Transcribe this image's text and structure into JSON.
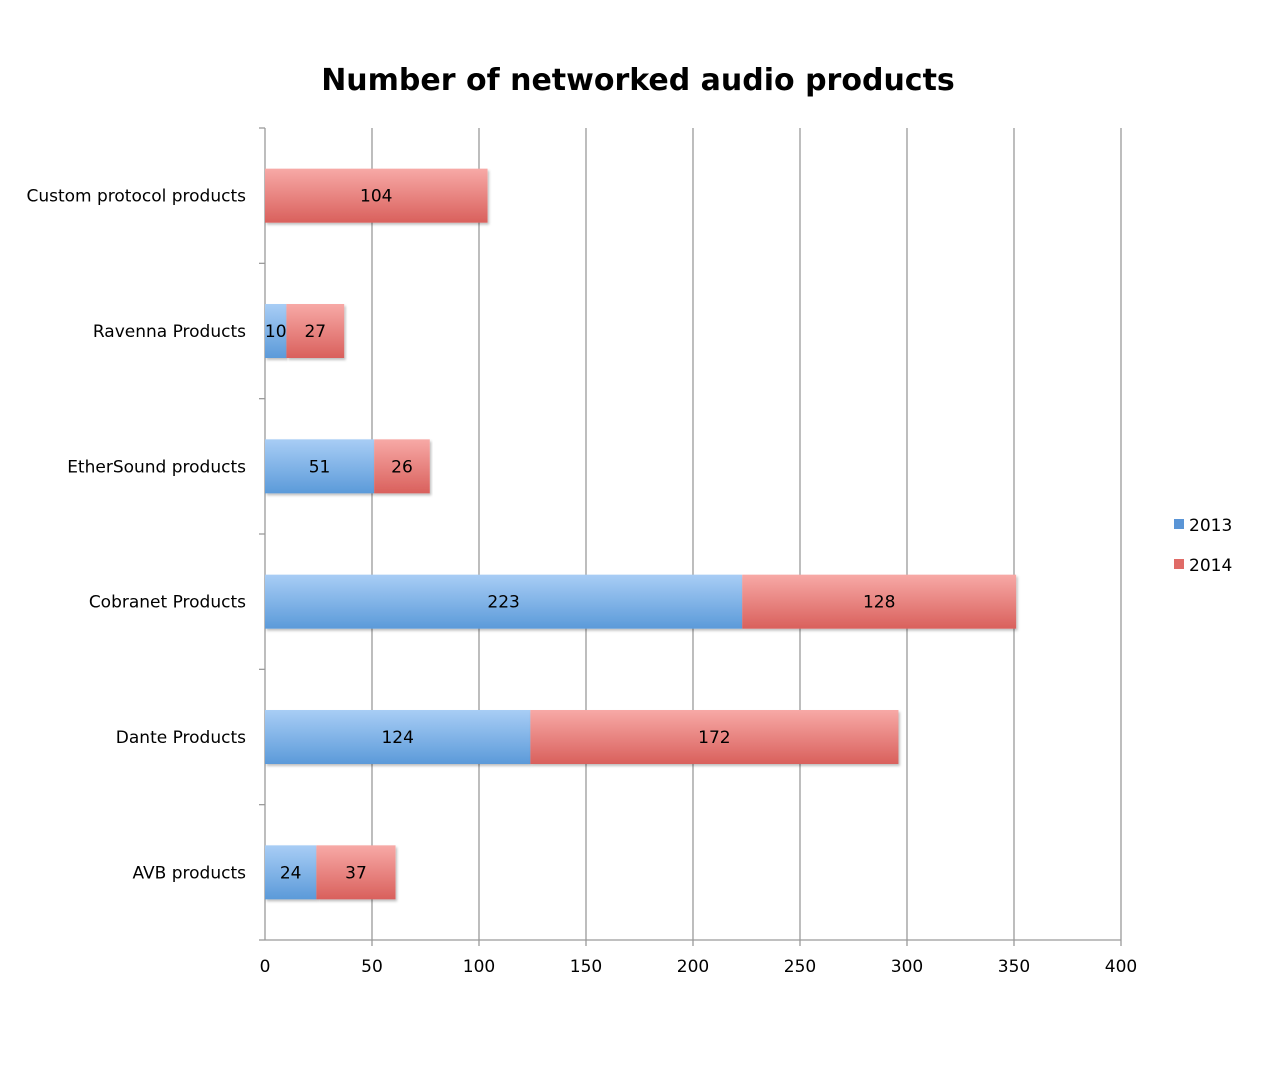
{
  "chart_data": {
    "type": "bar",
    "orientation": "horizontal",
    "stacked": true,
    "title": "Number of networked audio products",
    "categories": [
      "Custom protocol products",
      "Ravenna Products",
      "EtherSound products",
      "Cobranet Products",
      "Dante Products",
      "AVB products"
    ],
    "series": [
      {
        "name": "2013",
        "values": [
          0,
          10,
          51,
          223,
          124,
          24
        ],
        "color_top": "#a8cdf5",
        "color_bottom": "#5b9ad9",
        "legend_color": "#5a95d6"
      },
      {
        "name": "2014",
        "values": [
          104,
          27,
          26,
          128,
          172,
          37
        ],
        "color_top": "#f7a9a6",
        "color_bottom": "#d9605c",
        "legend_color": "#e06b67"
      }
    ],
    "x_ticks": [
      "0",
      "50",
      "100",
      "150",
      "200",
      "250",
      "300",
      "350",
      "400"
    ],
    "xlim": [
      0,
      400
    ],
    "grid": "vertical",
    "legend_position": "right",
    "data_labels": true
  }
}
